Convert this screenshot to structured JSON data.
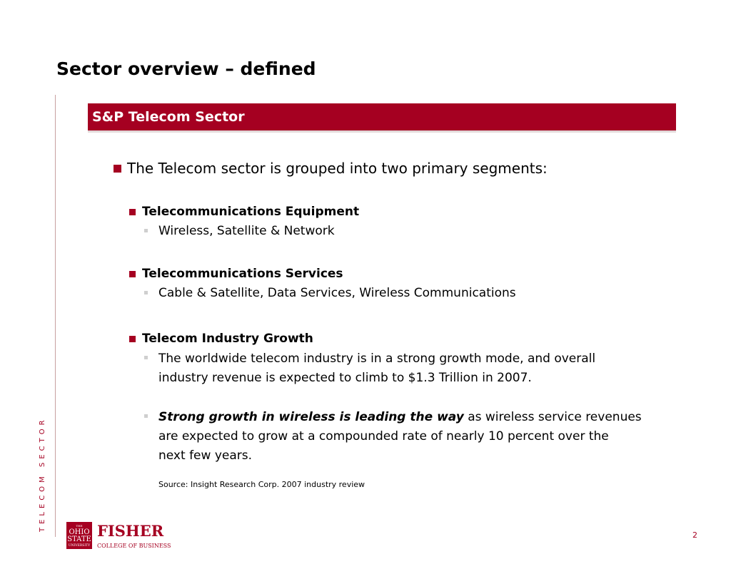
{
  "slide": {
    "title": "Sector overview – defined",
    "side_label": "TELECOM SECTOR",
    "banner": "S&P Telecom Sector",
    "page_number": "2"
  },
  "content": {
    "intro": "The Telecom sector is grouped into two primary segments:",
    "segments": [
      {
        "heading": "Telecommunications Equipment",
        "detail": "Wireless, Satellite & Network"
      },
      {
        "heading": "Telecommunications Services",
        "detail": "Cable & Satellite, Data Services, Wireless Communications"
      },
      {
        "heading": "Telecom Industry Growth"
      }
    ],
    "growth": {
      "line1": "The worldwide telecom industry is in a strong growth mode, and overall",
      "line2": "industry revenue is expected to climb to $1.3 Trillion in 2007.",
      "emphasis": "Strong growth in wireless is leading the way",
      "rest1": " as wireless service revenues",
      "rest2": "are expected to grow at a compounded rate of nearly 10 percent over the",
      "rest3": "next few years."
    },
    "source": "Source: Insight Research Corp. 2007 industry review"
  },
  "logo": {
    "seal_the": "THE",
    "seal_ohio": "OHIO",
    "seal_state": "STATE",
    "seal_university": "UNIVERSITY",
    "fisher": "FISHER",
    "college": "COLLEGE OF BUSINESS"
  },
  "colors": {
    "accent": "#a50021",
    "bullet_light": "#cfcfcf"
  }
}
